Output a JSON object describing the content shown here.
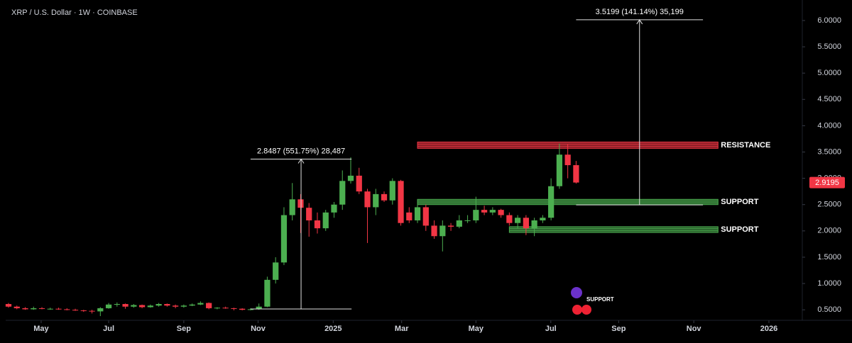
{
  "chart_data": {
    "type": "candlestick",
    "title": "XRP / U.S. Dollar · 1W · COINBASE",
    "up_color": "#4caf50",
    "down_color": "#f23645",
    "open": [
      0.61,
      0.56,
      0.53,
      0.51,
      0.53,
      0.52,
      0.52,
      0.51,
      0.5,
      0.49,
      0.48,
      0.47,
      0.53,
      0.6,
      0.61,
      0.56,
      0.59,
      0.55,
      0.58,
      0.61,
      0.58,
      0.56,
      0.58,
      0.6,
      0.63,
      0.53,
      0.54,
      0.53,
      0.52,
      0.5,
      0.51,
      0.56,
      1.07,
      1.4,
      2.3,
      2.6,
      2.44,
      2.2,
      2.05,
      2.35,
      2.5,
      2.95,
      3.05,
      2.75,
      2.45,
      2.7,
      2.58,
      2.95,
      2.35,
      2.2,
      2.45,
      2.1,
      1.9,
      2.1,
      2.08,
      2.2,
      2.2,
      2.4,
      2.35,
      2.4,
      2.3,
      2.15,
      2.25,
      2.05,
      2.2,
      2.25,
      2.85,
      3.45,
      3.25
    ],
    "high": [
      0.63,
      0.58,
      0.55,
      0.56,
      0.55,
      0.54,
      0.54,
      0.53,
      0.52,
      0.5,
      0.5,
      0.55,
      0.63,
      0.64,
      0.62,
      0.61,
      0.6,
      0.6,
      0.63,
      0.62,
      0.6,
      0.6,
      0.62,
      0.66,
      0.64,
      0.55,
      0.56,
      0.54,
      0.53,
      0.53,
      0.62,
      1.13,
      1.5,
      2.45,
      2.91,
      2.7,
      2.53,
      2.35,
      2.4,
      2.55,
      3.15,
      3.4,
      3.2,
      2.8,
      2.8,
      2.75,
      3.0,
      2.97,
      2.45,
      2.6,
      2.5,
      2.2,
      2.2,
      2.15,
      2.3,
      2.3,
      2.65,
      2.48,
      2.45,
      2.42,
      2.35,
      2.3,
      2.3,
      2.25,
      2.3,
      3.0,
      3.66,
      3.65,
      3.33
    ],
    "low": [
      0.54,
      0.51,
      0.5,
      0.5,
      0.51,
      0.5,
      0.5,
      0.49,
      0.48,
      0.46,
      0.43,
      0.38,
      0.52,
      0.56,
      0.52,
      0.54,
      0.53,
      0.54,
      0.56,
      0.56,
      0.53,
      0.54,
      0.57,
      0.59,
      0.51,
      0.51,
      0.52,
      0.49,
      0.49,
      0.49,
      0.5,
      0.55,
      1.0,
      1.35,
      2.2,
      1.96,
      1.89,
      1.95,
      2.0,
      2.25,
      2.4,
      2.9,
      2.7,
      1.77,
      2.3,
      2.55,
      2.5,
      2.1,
      2.15,
      2.15,
      2.0,
      1.85,
      1.61,
      2.0,
      2.05,
      2.15,
      2.15,
      2.3,
      2.3,
      2.25,
      2.1,
      2.05,
      1.92,
      1.9,
      2.15,
      2.2,
      2.8,
      3.0,
      2.9
    ],
    "close": [
      0.56,
      0.53,
      0.51,
      0.53,
      0.52,
      0.52,
      0.51,
      0.5,
      0.49,
      0.48,
      0.47,
      0.53,
      0.6,
      0.61,
      0.56,
      0.59,
      0.55,
      0.58,
      0.61,
      0.58,
      0.56,
      0.58,
      0.6,
      0.63,
      0.53,
      0.54,
      0.53,
      0.52,
      0.5,
      0.51,
      0.56,
      1.07,
      1.4,
      2.3,
      2.6,
      2.44,
      2.2,
      2.05,
      2.35,
      2.5,
      2.95,
      3.05,
      2.75,
      2.45,
      2.7,
      2.58,
      2.95,
      2.15,
      2.2,
      2.45,
      2.1,
      1.9,
      2.1,
      2.08,
      2.2,
      2.2,
      2.4,
      2.35,
      2.4,
      2.3,
      2.15,
      2.25,
      2.05,
      2.2,
      2.25,
      2.85,
      3.45,
      3.25,
      2.9195
    ],
    "xlim": [
      -0.34,
      95.1
    ],
    "xticks": [
      {
        "value": 3.91,
        "label": "May"
      },
      {
        "value": 12.0,
        "label": "Jul"
      },
      {
        "value": 21.0,
        "label": "Sep"
      },
      {
        "value": 29.9,
        "label": "Nov"
      },
      {
        "value": 38.9,
        "label": "2025"
      },
      {
        "value": 47.1,
        "label": "Mar"
      },
      {
        "value": 56.0,
        "label": "May"
      },
      {
        "value": 64.97,
        "label": "Jul"
      },
      {
        "value": 73.1,
        "label": "Sep"
      },
      {
        "value": 82.1,
        "label": "Nov"
      },
      {
        "value": 91.1,
        "label": "2026"
      }
    ],
    "ylim": [
      0.3,
      6.39
    ],
    "yticks": [
      {
        "value": 0.5,
        "label": "0.5000"
      },
      {
        "value": 1.0,
        "label": "1.0000"
      },
      {
        "value": 1.5,
        "label": "1.5000"
      },
      {
        "value": 2.0,
        "label": "2.0000"
      },
      {
        "value": 2.5,
        "label": "2.5000"
      },
      {
        "value": 3.0,
        "label": "3.0000"
      },
      {
        "value": 3.5,
        "label": "3.5000"
      },
      {
        "value": 4.0,
        "label": "4.0000"
      },
      {
        "value": 4.5,
        "label": "4.5000"
      },
      {
        "value": 5.0,
        "label": "5.0000"
      },
      {
        "value": 5.5,
        "label": "5.5000"
      },
      {
        "value": 6.0,
        "label": "6.0000"
      }
    ],
    "grid": false,
    "last_price": {
      "value": 2.9195,
      "label": "2.9195",
      "color": "#f23645"
    },
    "zones": [
      {
        "label": "RESISTANCE",
        "x_start": 49,
        "x_end": 85,
        "low": 3.57,
        "high": 3.69,
        "color": "#f23645"
      },
      {
        "label": "SUPPORT",
        "x_start": 49,
        "x_end": 85,
        "low": 2.5,
        "high": 2.6,
        "color": "#4caf50"
      },
      {
        "label": "SUPPORT",
        "x_start": 60,
        "x_end": 85,
        "low": 1.97,
        "high": 2.08,
        "color": "#4caf50"
      }
    ],
    "measurements": [
      {
        "label": "2.8487 (551.75%) 28,487",
        "x_start": 29.0,
        "x_end": 41.1,
        "low": 0.5163,
        "high": 3.365
      },
      {
        "label": "3.5199 (141.14%) 35,199",
        "x_start": 68.0,
        "x_end": 83.2,
        "low": 2.494,
        "high": 6.0139
      }
    ],
    "watermark_text": "SUPPORT"
  }
}
